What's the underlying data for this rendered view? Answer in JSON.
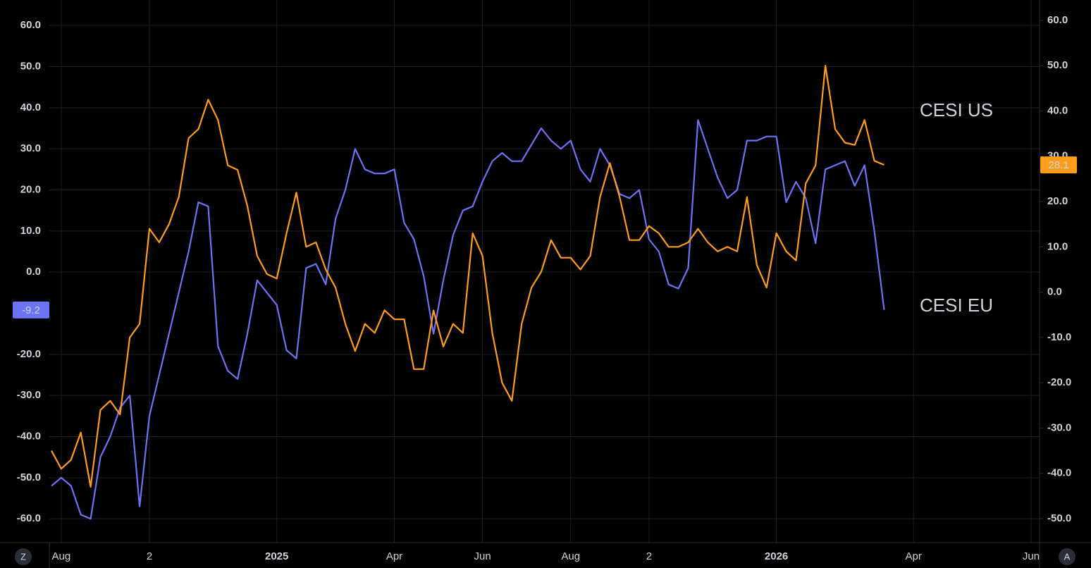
{
  "chart_data": {
    "type": "line",
    "categories": [
      null,
      "Aug",
      null,
      null,
      null,
      null,
      null,
      null,
      null,
      null,
      "2",
      null,
      null,
      null,
      null,
      null,
      null,
      null,
      null,
      null,
      null,
      null,
      null,
      "2025",
      null,
      null,
      null,
      null,
      null,
      null,
      null,
      null,
      null,
      null,
      null,
      "Apr",
      null,
      null,
      null,
      null,
      null,
      null,
      null,
      null,
      "Jun",
      null,
      null,
      null,
      null,
      null,
      null,
      null,
      null,
      "Aug",
      null,
      null,
      null,
      null,
      null,
      null,
      null,
      "2",
      null,
      null,
      null,
      null,
      null,
      null,
      null,
      null,
      null,
      null,
      null,
      null,
      "2026",
      null,
      null,
      null,
      null,
      null,
      null,
      null,
      null,
      null,
      null,
      null,
      null,
      null,
      "Apr",
      null,
      null,
      null,
      null,
      null,
      null,
      null,
      null,
      null,
      null,
      null,
      "Jun"
    ],
    "series": [
      {
        "name": "CESI EU",
        "color": "#6c74f4",
        "axis": "y",
        "values": [
          -52,
          -50,
          -52,
          -59,
          -60,
          -45,
          -40,
          -33,
          -30,
          -57,
          -35,
          -25,
          -15,
          -5,
          5,
          17,
          16,
          -18,
          -24,
          -26,
          -15,
          -2,
          -5,
          -8,
          -19,
          -21,
          1,
          2,
          -3,
          13,
          20,
          30,
          25,
          24,
          24,
          25,
          12,
          8,
          -1,
          -15,
          -2,
          9,
          15,
          16,
          22,
          27,
          29,
          27,
          27,
          31,
          35,
          32,
          30,
          32,
          25,
          22,
          30,
          26,
          19,
          18,
          20,
          8,
          5,
          -3,
          -4,
          1,
          37,
          30,
          23,
          18,
          20,
          32,
          32,
          33,
          33,
          17,
          22,
          18,
          7,
          25,
          26,
          27,
          21,
          26,
          10,
          -9.2,
          null,
          null,
          null,
          null,
          null,
          null,
          null,
          null,
          null,
          null,
          null,
          null,
          null,
          null,
          null
        ]
      },
      {
        "name": "CESI US",
        "color": "#ff9c1a",
        "axis": "y2",
        "values": [
          -35,
          -39,
          -37,
          -31,
          -43,
          -26,
          -24,
          -27,
          -10,
          -7,
          14,
          11,
          15,
          21,
          34,
          36,
          42.5,
          38,
          28,
          27,
          19,
          8,
          4,
          3,
          13,
          22,
          10,
          11,
          5,
          1,
          -7,
          -13,
          -7,
          -9,
          -4,
          -6,
          -6,
          -17,
          -17,
          -4,
          -12,
          -7,
          -9,
          13,
          8,
          -9,
          -20,
          -24,
          -7,
          1,
          4.5,
          11.5,
          7.6,
          7.6,
          5,
          8,
          21,
          28.5,
          21,
          11.5,
          11.5,
          14.6,
          13,
          10,
          10,
          11,
          14,
          11,
          9,
          10,
          9,
          21,
          6,
          1,
          13,
          9,
          7,
          24,
          28,
          50,
          36,
          33,
          32.5,
          38,
          29,
          28.1,
          null,
          null,
          null,
          null,
          null,
          null,
          null,
          null,
          null,
          null,
          null,
          null,
          null,
          null,
          null
        ]
      }
    ],
    "ylim": [
      -65.8,
      66.2
    ],
    "yticks": [
      {
        "value": 60,
        "label": "60.0"
      },
      {
        "value": 50,
        "label": "50.0"
      },
      {
        "value": 40,
        "label": "40.0"
      },
      {
        "value": 30,
        "label": "30.0"
      },
      {
        "value": 20,
        "label": "20.0"
      },
      {
        "value": 10,
        "label": "10.0"
      },
      {
        "value": 0,
        "label": "0.0"
      },
      {
        "value": -20,
        "label": "-20.0"
      },
      {
        "value": -30,
        "label": "-30.0"
      },
      {
        "value": -40,
        "label": "-40.0"
      },
      {
        "value": -50,
        "label": "-50.0"
      },
      {
        "value": -60,
        "label": "-60.0"
      }
    ],
    "y2lim": [
      -55.3,
      64.5
    ],
    "y2ticks": [
      {
        "value": 60,
        "label": "60.0"
      },
      {
        "value": 50,
        "label": "50.0"
      },
      {
        "value": 40,
        "label": "40.0"
      },
      {
        "value": 30,
        "label": "30.0"
      },
      {
        "value": 20,
        "label": "20.0"
      },
      {
        "value": 10,
        "label": "10.0"
      },
      {
        "value": 0,
        "label": "0.0"
      },
      {
        "value": -10,
        "label": "-10.0"
      },
      {
        "value": -20,
        "label": "-20.0"
      },
      {
        "value": -30,
        "label": "-30.0"
      },
      {
        "value": -40,
        "label": "-40.0"
      },
      {
        "value": -50,
        "label": "-50.0"
      }
    ],
    "grid": true,
    "corner_buttons": [
      "Z",
      "A"
    ]
  }
}
